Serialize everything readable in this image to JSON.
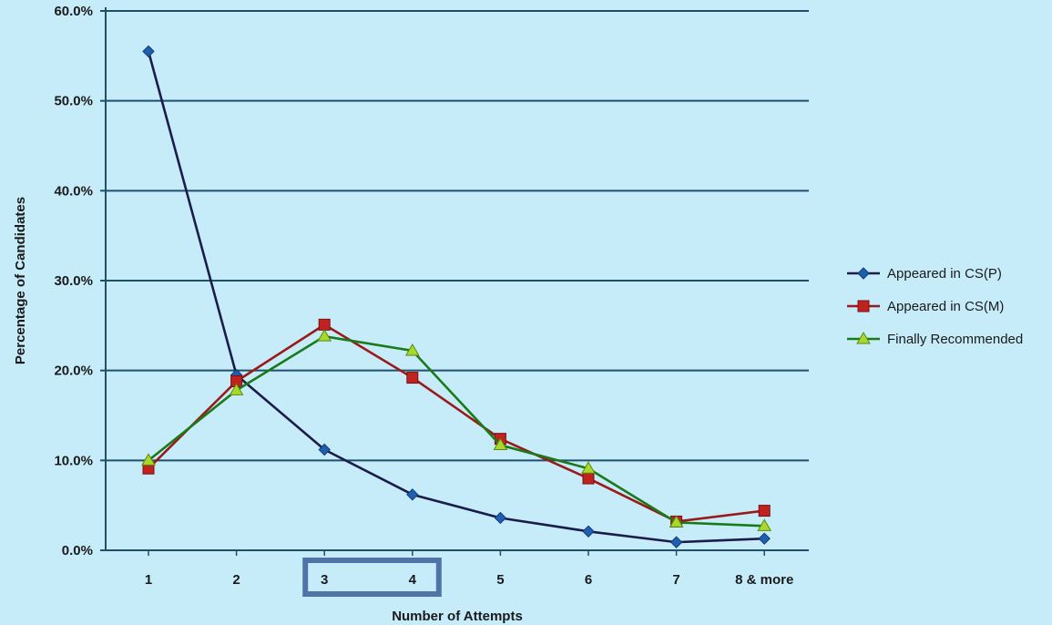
{
  "chart_data": {
    "type": "line",
    "title": "",
    "xlabel": "Number of Attempts",
    "ylabel": "Percentage of Candidates",
    "categories": [
      "1",
      "2",
      "3",
      "4",
      "5",
      "6",
      "7",
      "8 & more"
    ],
    "ylim": [
      0,
      60
    ],
    "y_ticks": [
      0,
      10,
      20,
      30,
      40,
      50,
      60
    ],
    "y_tick_labels": [
      "0.0%",
      "10.0%",
      "20.0%",
      "30.0%",
      "40.0%",
      "50.0%",
      "60.0%"
    ],
    "grid": "horizontal",
    "legend_position": "right",
    "highlight": {
      "categories": [
        "3",
        "4"
      ],
      "color": "#4f74a8"
    },
    "series": [
      {
        "name": "Appeared in CS(P)",
        "marker": "diamond",
        "color": "#1c1c4a",
        "marker_color": "#1f5fb0",
        "values": [
          55.5,
          19.5,
          11.2,
          6.2,
          3.6,
          2.1,
          0.9,
          1.3
        ]
      },
      {
        "name": "Appeared in CS(M)",
        "marker": "square",
        "color": "#9a1a1a",
        "marker_color": "#c0221f",
        "values": [
          9.1,
          18.8,
          25.1,
          19.2,
          12.4,
          8.0,
          3.2,
          4.4
        ]
      },
      {
        "name": "Finally Recommended",
        "marker": "triangle",
        "color": "#1a7a1a",
        "marker_color": "#a8d82a",
        "values": [
          10.0,
          17.8,
          23.8,
          22.2,
          11.7,
          9.1,
          3.1,
          2.7
        ]
      }
    ]
  }
}
